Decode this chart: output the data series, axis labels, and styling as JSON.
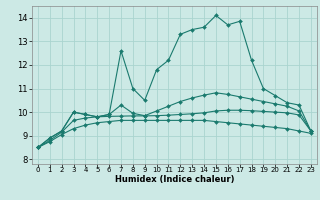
{
  "title": "",
  "xlabel": "Humidex (Indice chaleur)",
  "bg_color": "#cce9e5",
  "grid_color": "#aad4cf",
  "line_color": "#1a7a6e",
  "x_ticks": [
    0,
    1,
    2,
    3,
    4,
    5,
    6,
    7,
    8,
    9,
    10,
    11,
    12,
    13,
    14,
    15,
    16,
    17,
    18,
    19,
    20,
    21,
    22,
    23
  ],
  "y_ticks": [
    8,
    9,
    10,
    11,
    12,
    13,
    14
  ],
  "xlim": [
    -0.5,
    23.5
  ],
  "ylim": [
    7.8,
    14.5
  ],
  "series1_x": [
    0,
    1,
    2,
    3,
    4,
    5,
    6,
    7,
    8,
    9,
    10,
    11,
    12,
    13,
    14,
    15,
    16,
    17,
    18,
    19,
    20,
    21,
    22,
    23
  ],
  "series1_y": [
    8.5,
    8.9,
    9.2,
    10.0,
    9.9,
    9.8,
    9.9,
    12.6,
    11.0,
    10.5,
    11.8,
    12.2,
    13.3,
    13.5,
    13.6,
    14.1,
    13.7,
    13.85,
    12.2,
    11.0,
    10.7,
    10.4,
    10.3,
    9.2
  ],
  "series2_x": [
    0,
    1,
    2,
    3,
    4,
    5,
    6,
    7,
    8,
    9,
    10,
    11,
    12,
    13,
    14,
    15,
    16,
    17,
    18,
    19,
    20,
    21,
    22,
    23
  ],
  "series2_y": [
    8.5,
    8.9,
    9.2,
    10.0,
    9.9,
    9.8,
    9.9,
    10.3,
    9.95,
    9.85,
    10.05,
    10.25,
    10.45,
    10.6,
    10.72,
    10.82,
    10.75,
    10.65,
    10.55,
    10.45,
    10.35,
    10.25,
    10.05,
    9.2
  ],
  "series3_x": [
    0,
    1,
    2,
    3,
    4,
    5,
    6,
    7,
    8,
    9,
    10,
    11,
    12,
    13,
    14,
    15,
    16,
    17,
    18,
    19,
    20,
    21,
    22,
    23
  ],
  "series3_y": [
    8.5,
    8.75,
    9.05,
    9.3,
    9.45,
    9.55,
    9.6,
    9.65,
    9.65,
    9.65,
    9.65,
    9.65,
    9.65,
    9.65,
    9.65,
    9.6,
    9.55,
    9.5,
    9.45,
    9.4,
    9.35,
    9.3,
    9.2,
    9.1
  ],
  "series4_x": [
    0,
    1,
    2,
    3,
    4,
    5,
    6,
    7,
    8,
    9,
    10,
    11,
    12,
    13,
    14,
    15,
    16,
    17,
    18,
    19,
    20,
    21,
    22,
    23
  ],
  "series4_y": [
    8.5,
    8.8,
    9.15,
    9.65,
    9.75,
    9.8,
    9.82,
    9.83,
    9.84,
    9.84,
    9.85,
    9.87,
    9.9,
    9.93,
    9.97,
    10.05,
    10.08,
    10.08,
    10.06,
    10.03,
    10.0,
    9.97,
    9.88,
    9.2
  ]
}
